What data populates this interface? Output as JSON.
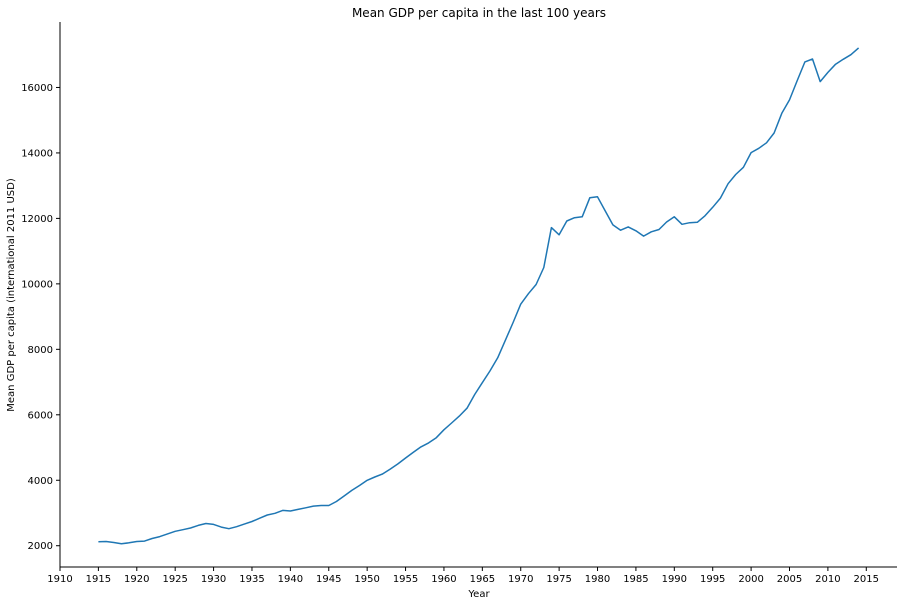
{
  "chart_data": {
    "type": "line",
    "title": "Mean GDP per capita in the last 100 years",
    "xlabel": "Year",
    "ylabel": "Mean GDP per capita (international 2011 USD)",
    "xlim": [
      1910,
      2019
    ],
    "ylim": [
      1350,
      18000
    ],
    "x_ticks": [
      1910,
      1915,
      1920,
      1925,
      1930,
      1935,
      1940,
      1945,
      1950,
      1955,
      1960,
      1965,
      1970,
      1975,
      1980,
      1985,
      1990,
      1995,
      2000,
      2005,
      2010,
      2015
    ],
    "y_ticks": [
      2000,
      4000,
      6000,
      8000,
      10000,
      12000,
      14000,
      16000
    ],
    "grid": false,
    "line_color": "#1f77b4",
    "series": [
      {
        "x": [
          1915,
          1916,
          1917,
          1918,
          1919,
          1920,
          1921,
          1922,
          1923,
          1924,
          1925,
          1926,
          1927,
          1928,
          1929,
          1930,
          1931,
          1932,
          1933,
          1934,
          1935,
          1936,
          1937,
          1938,
          1939,
          1940,
          1941,
          1942,
          1943,
          1944,
          1945,
          1946,
          1947,
          1948,
          1949,
          1950,
          1951,
          1952,
          1953,
          1954,
          1955,
          1956,
          1957,
          1958,
          1959,
          1960,
          1961,
          1962,
          1963,
          1964,
          1965,
          1966,
          1967,
          1968,
          1969,
          1970,
          1971,
          1972,
          1973,
          1974,
          1975,
          1976,
          1977,
          1978,
          1979,
          1980,
          1981,
          1982,
          1983,
          1984,
          1985,
          1986,
          1987,
          1988,
          1989,
          1990,
          1991,
          1992,
          1993,
          1994,
          1995,
          1996,
          1997,
          1998,
          1999,
          2000,
          2001,
          2002,
          2003,
          2004,
          2005,
          2006,
          2007,
          2008,
          2009,
          2010,
          2011,
          2012,
          2013,
          2014
        ],
        "values": [
          2120,
          2130,
          2100,
          2060,
          2090,
          2130,
          2140,
          2220,
          2280,
          2360,
          2440,
          2490,
          2540,
          2620,
          2680,
          2650,
          2570,
          2520,
          2580,
          2660,
          2740,
          2840,
          2940,
          2990,
          3080,
          3060,
          3110,
          3160,
          3210,
          3230,
          3230,
          3350,
          3520,
          3690,
          3840,
          4000,
          4100,
          4190,
          4340,
          4500,
          4680,
          4850,
          5020,
          5140,
          5300,
          5540,
          5750,
          5960,
          6200,
          6620,
          6980,
          7340,
          7740,
          8280,
          8820,
          9380,
          9700,
          9980,
          10500,
          11720,
          11500,
          11920,
          12020,
          12050,
          12630,
          12660,
          12230,
          11800,
          11640,
          11740,
          11620,
          11460,
          11590,
          11660,
          11890,
          12050,
          11820,
          11870,
          11880,
          12080,
          12340,
          12620,
          13060,
          13340,
          13560,
          14010,
          14140,
          14310,
          14610,
          15210,
          15620,
          16210,
          16780,
          16870,
          16180,
          16460,
          16710,
          16860,
          17000,
          17210
        ]
      }
    ]
  }
}
